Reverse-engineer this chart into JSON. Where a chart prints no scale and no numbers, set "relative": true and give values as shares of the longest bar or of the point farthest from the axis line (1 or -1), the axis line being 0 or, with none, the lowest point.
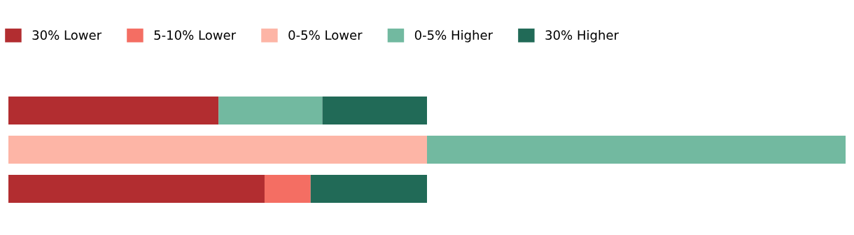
{
  "chart_data": {
    "type": "bar",
    "orientation": "horizontal",
    "stacked": true,
    "relative": true,
    "legend": "top left",
    "grid": false,
    "categories": [
      null,
      null,
      null
    ],
    "series": [
      {
        "name": "30% Lower",
        "color": "#b22d30",
        "values": [
          0.251,
          0,
          0.306
        ]
      },
      {
        "name": "5-10% Lower",
        "color": "#f46e63",
        "values": [
          0,
          0,
          0.055
        ]
      },
      {
        "name": "0-5% Lower",
        "color": "#fdb5a6",
        "values": [
          0,
          0.5,
          0
        ]
      },
      {
        "name": "0-5% Higher",
        "color": "#72b9a0",
        "values": [
          0.124,
          0.5,
          0
        ]
      },
      {
        "name": "30% Higher",
        "color": "#216a57",
        "values": [
          0.125,
          0,
          0.139
        ]
      }
    ]
  }
}
